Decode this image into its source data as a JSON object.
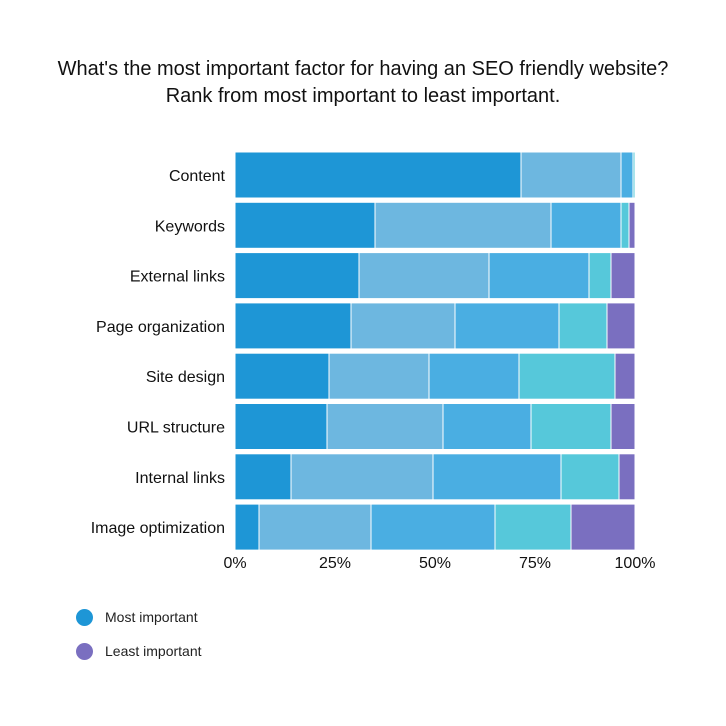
{
  "title": "What's the most important factor for having an SEO friendly website? Rank from most important to least important.",
  "legend": [
    {
      "label": "Most important",
      "color": "#1e96d6"
    },
    {
      "label": "Least important",
      "color": "#7a6fc0"
    }
  ],
  "chart_data": {
    "type": "bar",
    "orientation": "horizontal",
    "stacked": true,
    "normalized_percent": true,
    "xlim": [
      0,
      100
    ],
    "xticks": [
      "0%",
      "25%",
      "50%",
      "75%",
      "100%"
    ],
    "categories": [
      "Content",
      "Keywords",
      "External links",
      "Page organization",
      "Site design",
      "URL structure",
      "Internal links",
      "Image optimization"
    ],
    "segment_colors": [
      "#1e96d6",
      "#6db7e0",
      "#4aaee2",
      "#56c8da",
      "#7a6fc0"
    ],
    "rows": [
      [
        71.5,
        25,
        3,
        0.5,
        0
      ],
      [
        35,
        44,
        17.5,
        2,
        1.5
      ],
      [
        31,
        32.5,
        25,
        5.5,
        6
      ],
      [
        29,
        26,
        26,
        12,
        7
      ],
      [
        23.5,
        25,
        22.5,
        24,
        5
      ],
      [
        23,
        29,
        22,
        20,
        6
      ],
      [
        14,
        35.5,
        32,
        14.5,
        4
      ],
      [
        6,
        28,
        31,
        19,
        16
      ]
    ]
  }
}
